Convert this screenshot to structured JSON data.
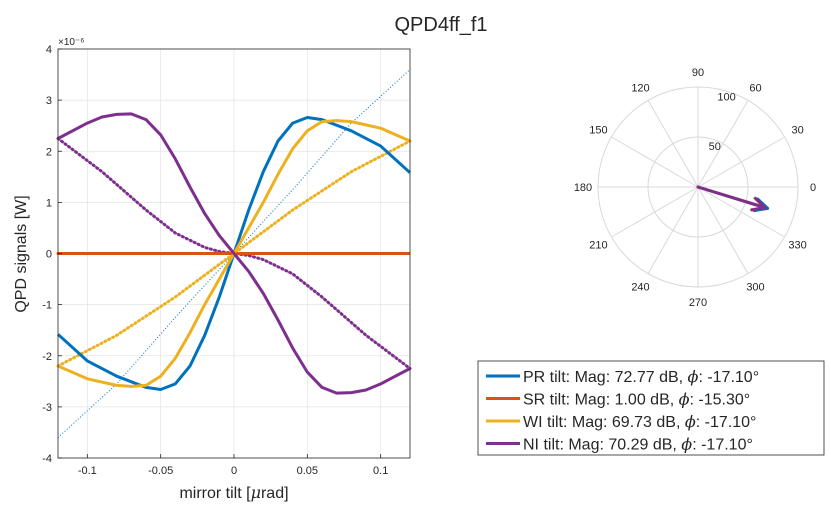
{
  "figure": {
    "title": "QPD4ff_f1"
  },
  "chart_data": [
    {
      "type": "line",
      "xlabel": "mirror tilt [μrad]",
      "ylabel": "QPD signals [W]",
      "xlim": [
        -0.12,
        0.12
      ],
      "ylim": [
        -4,
        4
      ],
      "y_exponent_label": "×10⁻⁶",
      "xticks": [
        -0.1,
        -0.05,
        0,
        0.05,
        0.1
      ],
      "xtick_labels": [
        "-0.1",
        "-0.05",
        "0",
        "0.05",
        "0.1"
      ],
      "yticks": [
        -4,
        -3,
        -2,
        -1,
        0,
        1,
        2,
        3,
        4
      ],
      "ytick_labels": [
        "-4",
        "-3",
        "-2",
        "-1",
        "0",
        "1",
        "2",
        "3",
        "4"
      ],
      "grid": true,
      "series": [
        {
          "name": "PR tilt: Mag: 72.77 dB, ϕ: -17.10°",
          "color": "#0072BD",
          "style": "solid",
          "x": [
            -0.12,
            -0.1,
            -0.08,
            -0.06,
            -0.05,
            -0.04,
            -0.03,
            -0.02,
            -0.01,
            0,
            0.01,
            0.02,
            0.03,
            0.04,
            0.05,
            0.06,
            0.08,
            0.1,
            0.12
          ],
          "y": [
            -1.58,
            -2.1,
            -2.4,
            -2.62,
            -2.66,
            -2.55,
            -2.2,
            -1.6,
            -0.85,
            0,
            0.85,
            1.6,
            2.2,
            2.55,
            2.66,
            2.62,
            2.4,
            2.1,
            1.58
          ]
        },
        {
          "name": "SR tilt: Mag: 1.00 dB, ϕ: -15.30°",
          "color": "#D95319",
          "style": "solid",
          "x": [
            -0.12,
            0,
            0.12
          ],
          "y": [
            0,
            0,
            0
          ]
        },
        {
          "name": "WI tilt: Mag: 69.73 dB, ϕ: -17.10°",
          "color": "#EDB120",
          "style": "solid",
          "x": [
            -0.12,
            -0.1,
            -0.08,
            -0.07,
            -0.06,
            -0.05,
            -0.04,
            -0.03,
            -0.02,
            -0.01,
            0,
            0.01,
            0.02,
            0.03,
            0.04,
            0.05,
            0.06,
            0.07,
            0.08,
            0.1,
            0.12
          ],
          "y": [
            -2.2,
            -2.45,
            -2.58,
            -2.6,
            -2.58,
            -2.4,
            -2.05,
            -1.55,
            -1.0,
            -0.5,
            0,
            0.5,
            1.0,
            1.55,
            2.05,
            2.4,
            2.58,
            2.6,
            2.58,
            2.45,
            2.2
          ]
        },
        {
          "name": "NI tilt: Mag: 70.29 dB, ϕ: -17.10°",
          "color": "#7E2F8E",
          "style": "solid",
          "x": [
            -0.12,
            -0.1,
            -0.09,
            -0.08,
            -0.07,
            -0.06,
            -0.05,
            -0.04,
            -0.03,
            -0.02,
            -0.01,
            0,
            0.01,
            0.02,
            0.03,
            0.04,
            0.05,
            0.06,
            0.07,
            0.08,
            0.09,
            0.1,
            0.12
          ],
          "y": [
            2.25,
            2.55,
            2.67,
            2.72,
            2.73,
            2.62,
            2.32,
            1.85,
            1.3,
            0.78,
            0.35,
            0,
            -0.35,
            -0.78,
            -1.3,
            -1.85,
            -2.32,
            -2.62,
            -2.73,
            -2.72,
            -2.67,
            -2.55,
            -2.25
          ]
        },
        {
          "color": "#0072BD",
          "style": "thin-dotted",
          "x": [
            -0.12,
            -0.08,
            -0.04,
            0,
            0.04,
            0.08,
            0.12
          ],
          "y": [
            -3.6,
            -2.55,
            -1.25,
            0,
            1.25,
            2.55,
            3.6
          ]
        },
        {
          "color": "#EDB120",
          "style": "dotted",
          "x": [
            -0.12,
            -0.08,
            -0.04,
            0,
            0.04,
            0.08,
            0.12
          ],
          "y": [
            -2.2,
            -1.6,
            -0.85,
            0,
            0.85,
            1.6,
            2.2
          ]
        },
        {
          "color": "#7E2F8E",
          "style": "dotted",
          "x": [
            -0.12,
            -0.09,
            -0.06,
            -0.04,
            -0.02,
            -0.01,
            0,
            0.01,
            0.02,
            0.04,
            0.06,
            0.09,
            0.12
          ],
          "y": [
            2.25,
            1.6,
            0.85,
            0.4,
            0.12,
            0.04,
            0,
            -0.04,
            -0.12,
            -0.4,
            -0.85,
            -1.6,
            -2.25
          ]
        },
        {
          "color": "#D95319",
          "style": "dotted",
          "x": [
            -0.12,
            0,
            0.12
          ],
          "y": [
            0,
            0,
            0
          ]
        }
      ]
    },
    {
      "type": "polar",
      "angle_ticks": [
        0,
        30,
        60,
        90,
        120,
        150,
        180,
        210,
        240,
        270,
        300,
        330
      ],
      "angle_tick_labels": [
        "0",
        "30",
        "60",
        "90",
        "120",
        "150",
        "180",
        "210",
        "240",
        "270",
        "300",
        "330"
      ],
      "radial_ticks": [
        50,
        100
      ],
      "radial_tick_labels": [
        "50",
        "100"
      ],
      "rlim": [
        0,
        100
      ],
      "series": [
        {
          "name": "PR tilt",
          "color": "#0072BD",
          "magnitude_db": 72.77,
          "phase_deg": -17.1
        },
        {
          "name": "SR tilt",
          "color": "#D95319",
          "magnitude_db": 1.0,
          "phase_deg": -15.3
        },
        {
          "name": "WI tilt",
          "color": "#EDB120",
          "magnitude_db": 69.73,
          "phase_deg": -17.1
        },
        {
          "name": "NI tilt",
          "color": "#7E2F8E",
          "magnitude_db": 70.29,
          "phase_deg": -17.1
        }
      ]
    }
  ],
  "legend": {
    "entries": [
      {
        "label_main": "PR tilt: Mag: 72.77 dB, ",
        "phi": "ϕ",
        "label_tail": ": -17.10°",
        "color": "#0072BD"
      },
      {
        "label_main": "SR tilt: Mag: 1.00 dB, ",
        "phi": "ϕ",
        "label_tail": ": -15.30°",
        "color": "#D95319"
      },
      {
        "label_main": "WI tilt: Mag: 69.73 dB, ",
        "phi": "ϕ",
        "label_tail": ": -17.10°",
        "color": "#EDB120"
      },
      {
        "label_main": "NI tilt: Mag: 70.29 dB, ",
        "phi": "ϕ",
        "label_tail": ": -17.10°",
        "color": "#7E2F8E"
      }
    ]
  }
}
